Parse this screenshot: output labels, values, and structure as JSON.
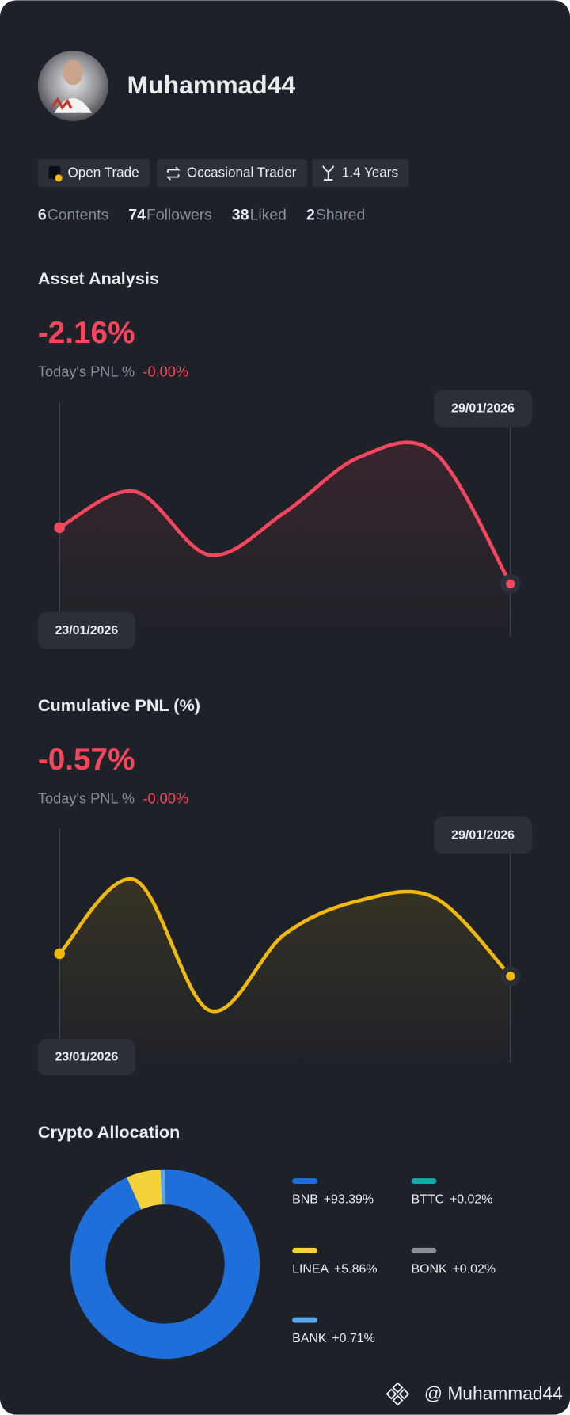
{
  "profile": {
    "username": "Muhammad44"
  },
  "badges": [
    "Open Trade",
    "Occasional Trader",
    "1.4 Years"
  ],
  "stats": [
    {
      "value": 6,
      "label": "Contents"
    },
    {
      "value": 74,
      "label": "Followers"
    },
    {
      "value": 38,
      "label": "Liked"
    },
    {
      "value": 2,
      "label": "Shared"
    }
  ],
  "asset_analysis": {
    "title": "Asset Analysis",
    "value": "-2.16%",
    "pnl_label": "Today's PNL %",
    "pnl_value": "-0.00%",
    "start_date": "23/01/2026",
    "end_date": "29/01/2026",
    "color": "#f6465d",
    "values": [
      0,
      1.39,
      -1.05,
      0.59,
      2.72,
      2.86,
      -2.16
    ]
  },
  "cumulative_pnl": {
    "title": "Cumulative PNL (%)",
    "value": "-0.57%",
    "pnl_label": "Today's PNL %",
    "pnl_value": "-0.00%",
    "start_date": "23/01/2026",
    "end_date": "29/01/2026",
    "color": "#f0b90b",
    "values": [
      0,
      1.87,
      -1.44,
      0.5,
      1.35,
      1.41,
      -0.57
    ]
  },
  "allocation": {
    "title": "Crypto Allocation",
    "items": [
      {
        "name": "BNB",
        "color": "#1e6fd9",
        "value": 93.39,
        "value_label": "+93.39%"
      },
      {
        "name": "LINEA",
        "color": "#f6d23a",
        "value": 5.86,
        "value_label": "+5.86%"
      },
      {
        "name": "BANK",
        "color": "#5aa7f0",
        "value": 0.71,
        "value_label": "+0.71%"
      },
      {
        "name": "BTTC",
        "color": "#19a8a8",
        "value": 0.02,
        "value_label": "+0.02%"
      },
      {
        "name": "BONK",
        "color": "#8a8f99",
        "value": 0.02,
        "value_label": "+0.02%"
      }
    ]
  },
  "watermark": "@ Muhammad44"
}
